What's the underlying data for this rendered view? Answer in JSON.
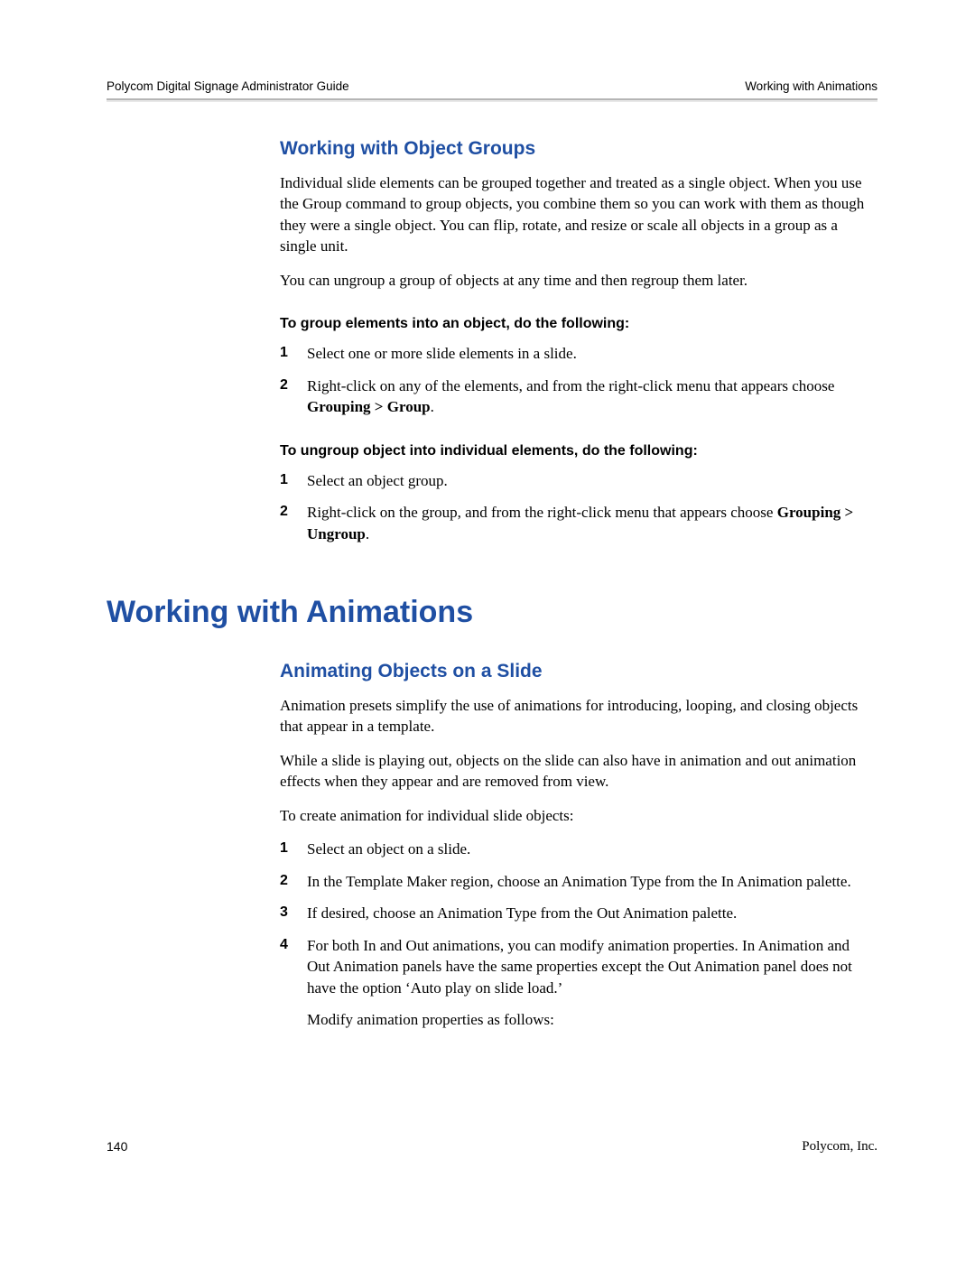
{
  "header": {
    "left": "Polycom Digital Signage Administrator Guide",
    "right": "Working with Animations"
  },
  "sections": {
    "object_groups": {
      "title": "Working with Object Groups",
      "para1": "Individual slide elements can be grouped together and treated as a single object. When you use the Group command to group objects, you combine them so you can work with them as though they were a single object. You can flip, rotate, and resize or scale all objects in a group as a single unit.",
      "para2": "You can ungroup a group of objects at any time and then regroup them later.",
      "proc1_title": "To group elements into an object, do the following:",
      "proc1_steps": [
        "Select one or more slide elements in a slide.",
        "Right-click on any of the elements, and from the right-click menu that appears choose "
      ],
      "proc1_step2_menu": "Grouping > Group",
      "proc2_title": "To ungroup object into individual elements, do the following:",
      "proc2_steps": [
        "Select an object group.",
        "Right-click on the group, and from the right-click menu that appears choose "
      ],
      "proc2_step2_menu": "Grouping > Ungroup"
    },
    "animations": {
      "title": "Working with Animations",
      "sub_title": "Animating Objects on a Slide",
      "para1": "Animation presets simplify the use of animations for introducing, looping, and closing objects that appear in a template.",
      "para2": "While a slide is playing out, objects on the slide can also have in animation and out animation effects when they appear and are removed from view.",
      "para3": "To create animation for individual slide objects:",
      "steps": [
        "Select an object on a slide.",
        "In the Template Maker region, choose an Animation Type from the In Animation palette.",
        "If desired, choose an Animation Type from the Out Animation palette.",
        "For both In and Out animations, you can modify animation properties. In Animation and Out Animation panels have the same properties except the Out Animation panel does not have the option ‘Auto play on slide load.’"
      ],
      "step4_extra": "Modify animation properties as follows:"
    }
  },
  "footer": {
    "page": "140",
    "company": "Polycom, Inc."
  },
  "period": "."
}
